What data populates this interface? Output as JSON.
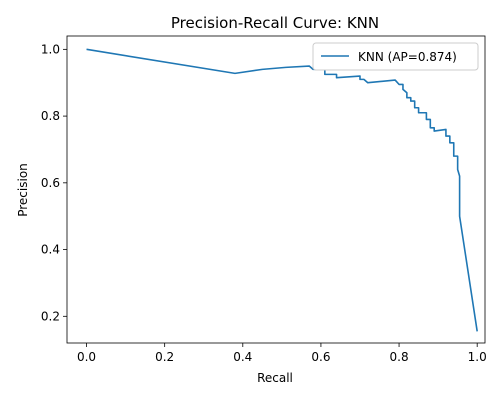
{
  "chart_data": {
    "type": "line",
    "title": "Precision-Recall Curve: KNN",
    "xlabel": "Recall",
    "ylabel": "Precision",
    "xlim": [
      -0.05,
      1.02
    ],
    "ylim": [
      0.12,
      1.04
    ],
    "x_ticks": [
      "0.0",
      "0.2",
      "0.4",
      "0.6",
      "0.8",
      "1.0"
    ],
    "y_ticks": [
      "0.2",
      "0.4",
      "0.6",
      "0.8",
      "1.0"
    ],
    "grid": false,
    "legend_position": "top-right",
    "series": [
      {
        "name": "KNN (AP=0.874)",
        "color": "#1f77b4",
        "x": [
          0.0,
          0.38,
          0.45,
          0.51,
          0.57,
          0.58,
          0.61,
          0.61,
          0.64,
          0.64,
          0.7,
          0.7,
          0.71,
          0.72,
          0.79,
          0.8,
          0.81,
          0.81,
          0.82,
          0.82,
          0.83,
          0.83,
          0.84,
          0.84,
          0.85,
          0.85,
          0.87,
          0.87,
          0.88,
          0.88,
          0.89,
          0.89,
          0.92,
          0.92,
          0.93,
          0.93,
          0.94,
          0.94,
          0.95,
          0.95,
          0.955,
          0.955,
          1.0
        ],
        "y": [
          1.0,
          0.928,
          0.94,
          0.946,
          0.95,
          0.94,
          0.94,
          0.925,
          0.925,
          0.915,
          0.92,
          0.91,
          0.91,
          0.9,
          0.908,
          0.895,
          0.895,
          0.88,
          0.87,
          0.855,
          0.855,
          0.845,
          0.845,
          0.825,
          0.825,
          0.81,
          0.81,
          0.79,
          0.79,
          0.765,
          0.765,
          0.755,
          0.76,
          0.74,
          0.74,
          0.72,
          0.72,
          0.68,
          0.68,
          0.64,
          0.62,
          0.5,
          0.155
        ]
      }
    ]
  }
}
